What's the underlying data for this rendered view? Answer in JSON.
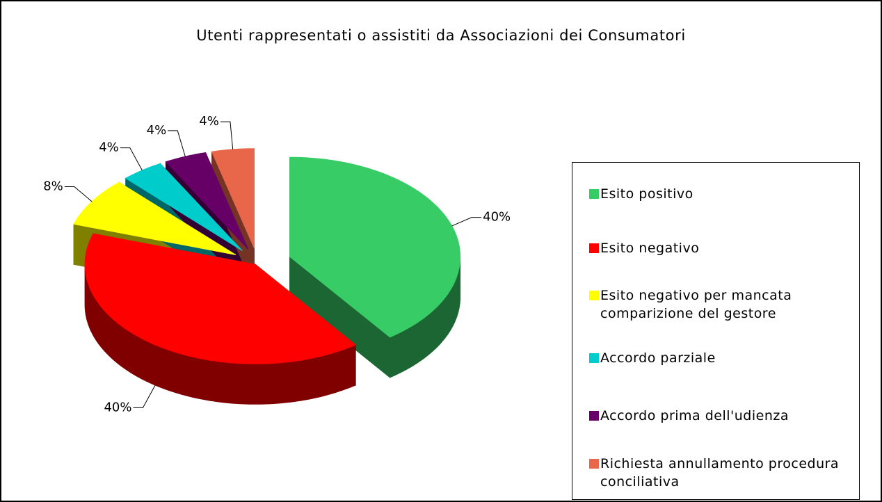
{
  "chart_data": {
    "type": "pie3d",
    "title": "Utenti rappresentati o assistiti da Associazioni dei Consumatori",
    "categories": [
      "Esito positivo",
      "Esito negativo",
      "Esito negativo per mancata comparizione del gestore",
      "Accordo parziale",
      "Accordo prima dell'udienza",
      "Richiesta annullamento procedura conciliativa"
    ],
    "values": [
      40,
      40,
      8,
      4,
      4,
      4
    ],
    "value_labels": [
      "40%",
      "40%",
      "8%",
      "4%",
      "4%",
      "4%"
    ],
    "colors": [
      "#38cc66",
      "#ff0000",
      "#ffff00",
      "#00cccc",
      "#660066",
      "#e8664a"
    ],
    "legend": "right"
  }
}
